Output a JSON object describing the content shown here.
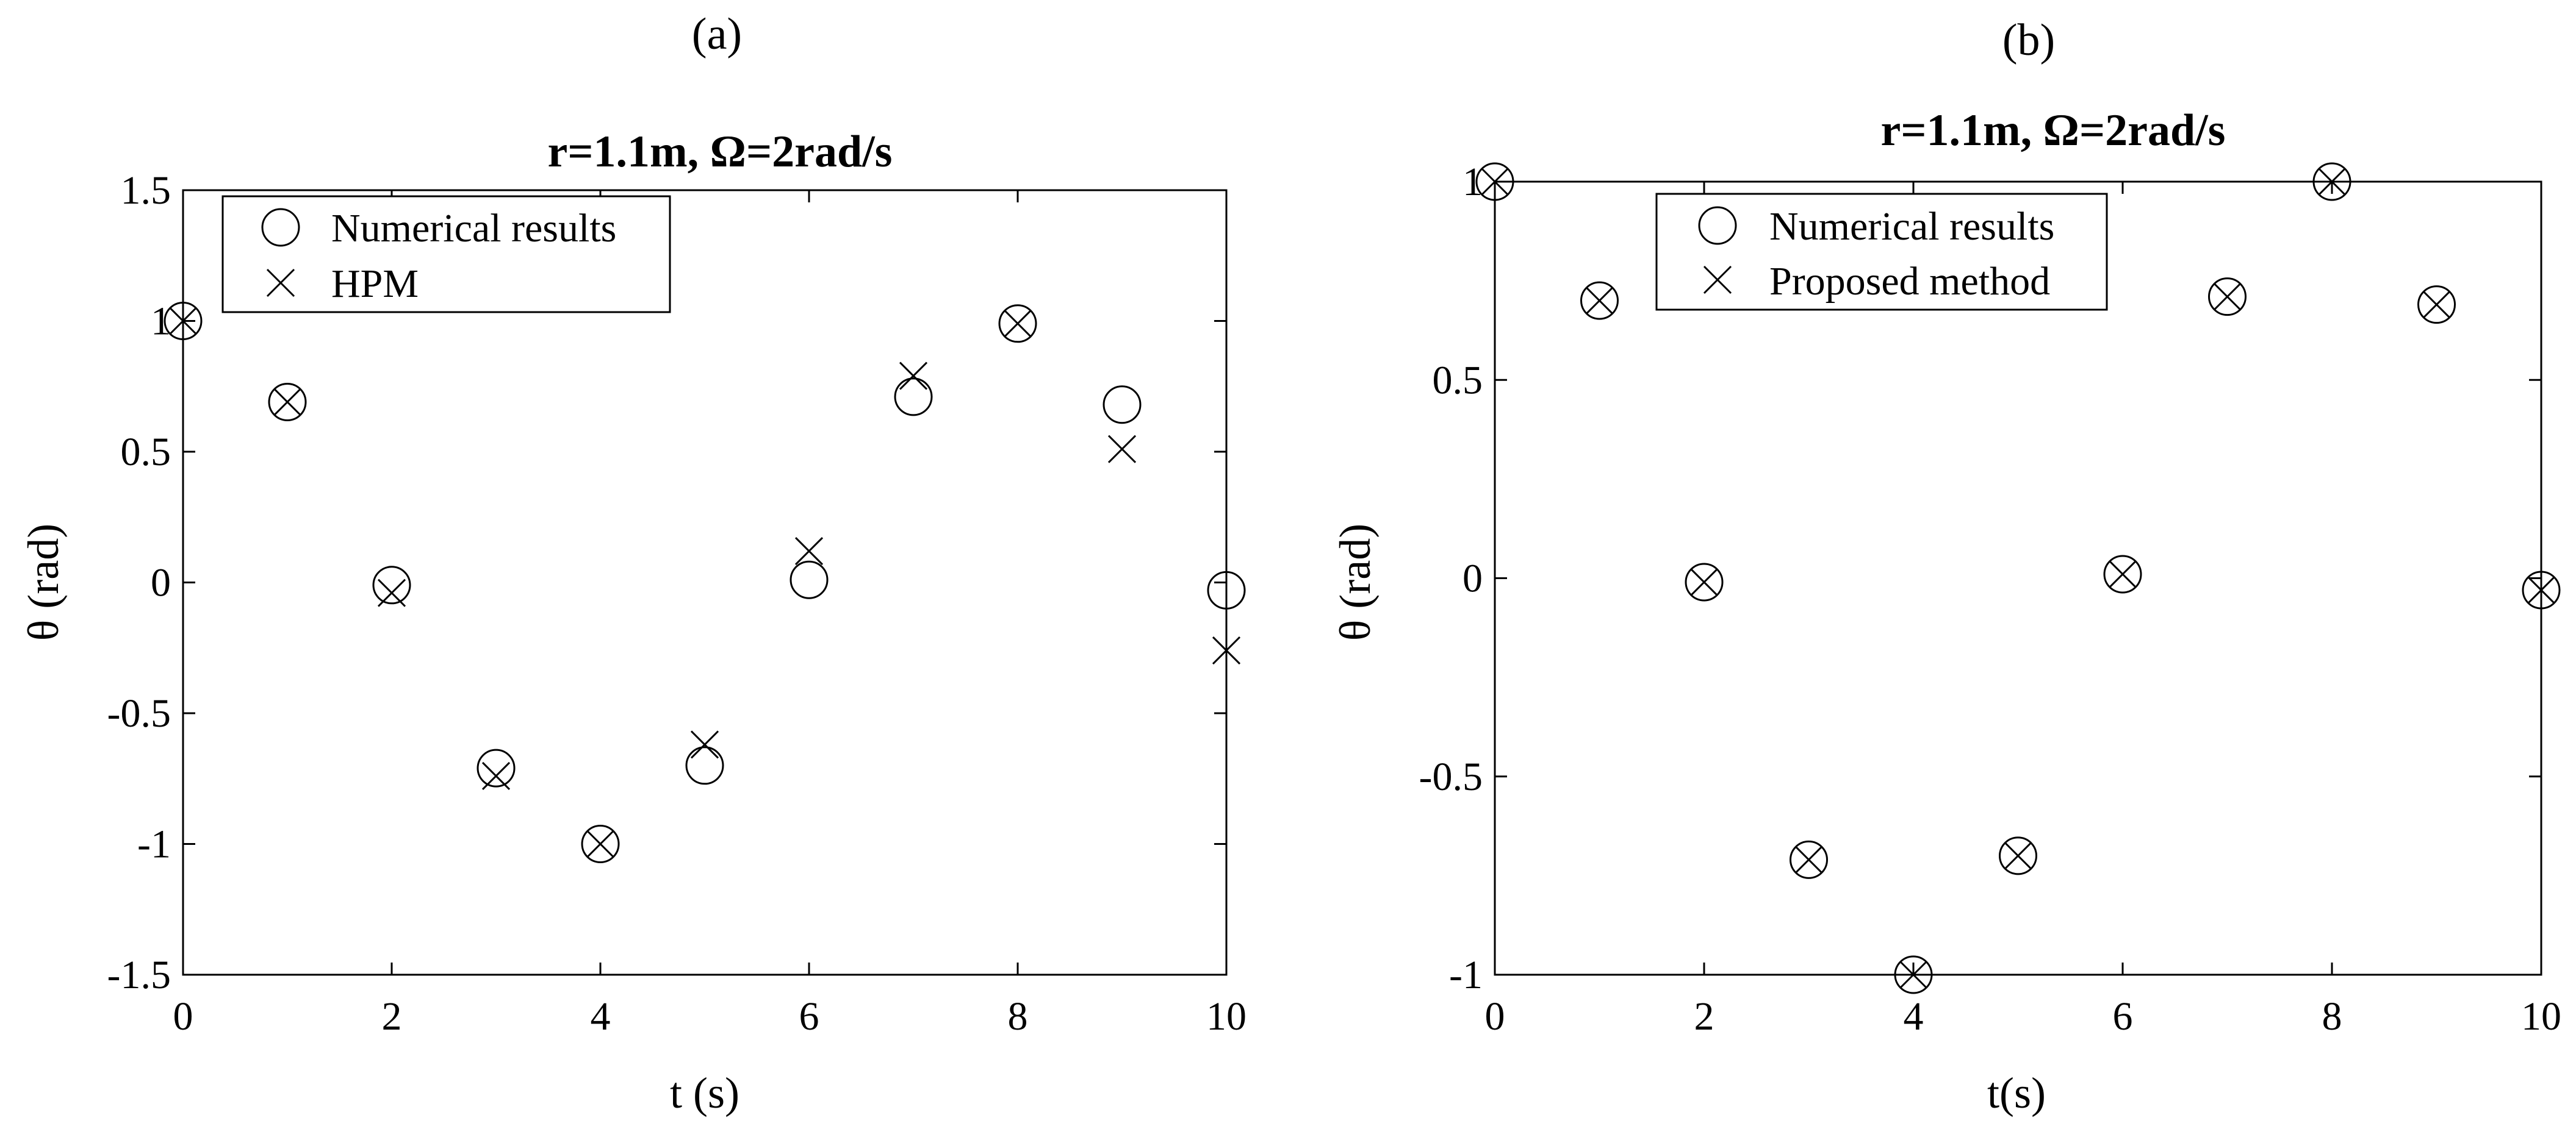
{
  "chart_data": [
    {
      "type": "scatter",
      "panel_label": "(a)",
      "title": "r=1.1m, Ω=2rad/s",
      "xlabel": "t (s)",
      "ylabel": "θ (rad)",
      "xlim": [
        0,
        10
      ],
      "ylim": [
        -1.5,
        1.5
      ],
      "xticks": [
        0,
        2,
        4,
        6,
        8,
        10
      ],
      "yticks": [
        -1.5,
        -1,
        -0.5,
        0,
        0.5,
        1,
        1.5
      ],
      "xtick_labels": [
        "0",
        "2",
        "4",
        "6",
        "8",
        "10"
      ],
      "ytick_labels": [
        "-1.5",
        "-1",
        "-0.5",
        "0",
        "0.5",
        "1",
        "1.5"
      ],
      "legend_position": "top-left",
      "series": [
        {
          "name": "Numerical results",
          "marker": "circle",
          "x": [
            0,
            1,
            2,
            3,
            4,
            5,
            6,
            7,
            8,
            9,
            10
          ],
          "y": [
            1.0,
            0.69,
            -0.01,
            -0.71,
            -1.0,
            -0.7,
            0.01,
            0.71,
            0.99,
            0.68,
            -0.03
          ]
        },
        {
          "name": "HPM",
          "marker": "x",
          "x": [
            0,
            1,
            2,
            3,
            4,
            5,
            6,
            7,
            8,
            9,
            10
          ],
          "y": [
            1.0,
            0.69,
            -0.04,
            -0.74,
            -1.0,
            -0.62,
            0.12,
            0.79,
            0.99,
            0.51,
            -0.26
          ]
        }
      ]
    },
    {
      "type": "scatter",
      "panel_label": "(b)",
      "title": "r=1.1m, Ω=2rad/s",
      "xlabel": "t(s)",
      "ylabel": "θ (rad)",
      "xlim": [
        0,
        10
      ],
      "ylim": [
        -1,
        1
      ],
      "xticks": [
        0,
        2,
        4,
        6,
        8,
        10
      ],
      "yticks": [
        -1,
        -0.5,
        0,
        0.5,
        1
      ],
      "xtick_labels": [
        "0",
        "2",
        "4",
        "6",
        "8",
        "10"
      ],
      "ytick_labels": [
        "-1",
        "-0.5",
        "0",
        "0.5",
        "1"
      ],
      "legend_position": "top-center",
      "series": [
        {
          "name": "Numerical results",
          "marker": "circle",
          "x": [
            0,
            1,
            2,
            3,
            4,
            5,
            6,
            7,
            8,
            9,
            10
          ],
          "y": [
            1.0,
            0.7,
            -0.01,
            -0.71,
            -1.0,
            -0.7,
            0.01,
            0.71,
            1.0,
            0.69,
            -0.03
          ]
        },
        {
          "name": "Proposed method",
          "marker": "x",
          "x": [
            0,
            1,
            2,
            3,
            4,
            5,
            6,
            7,
            8,
            9,
            10
          ],
          "y": [
            1.0,
            0.7,
            -0.01,
            -0.71,
            -1.0,
            -0.7,
            0.01,
            0.71,
            1.0,
            0.69,
            -0.03
          ]
        }
      ]
    }
  ]
}
